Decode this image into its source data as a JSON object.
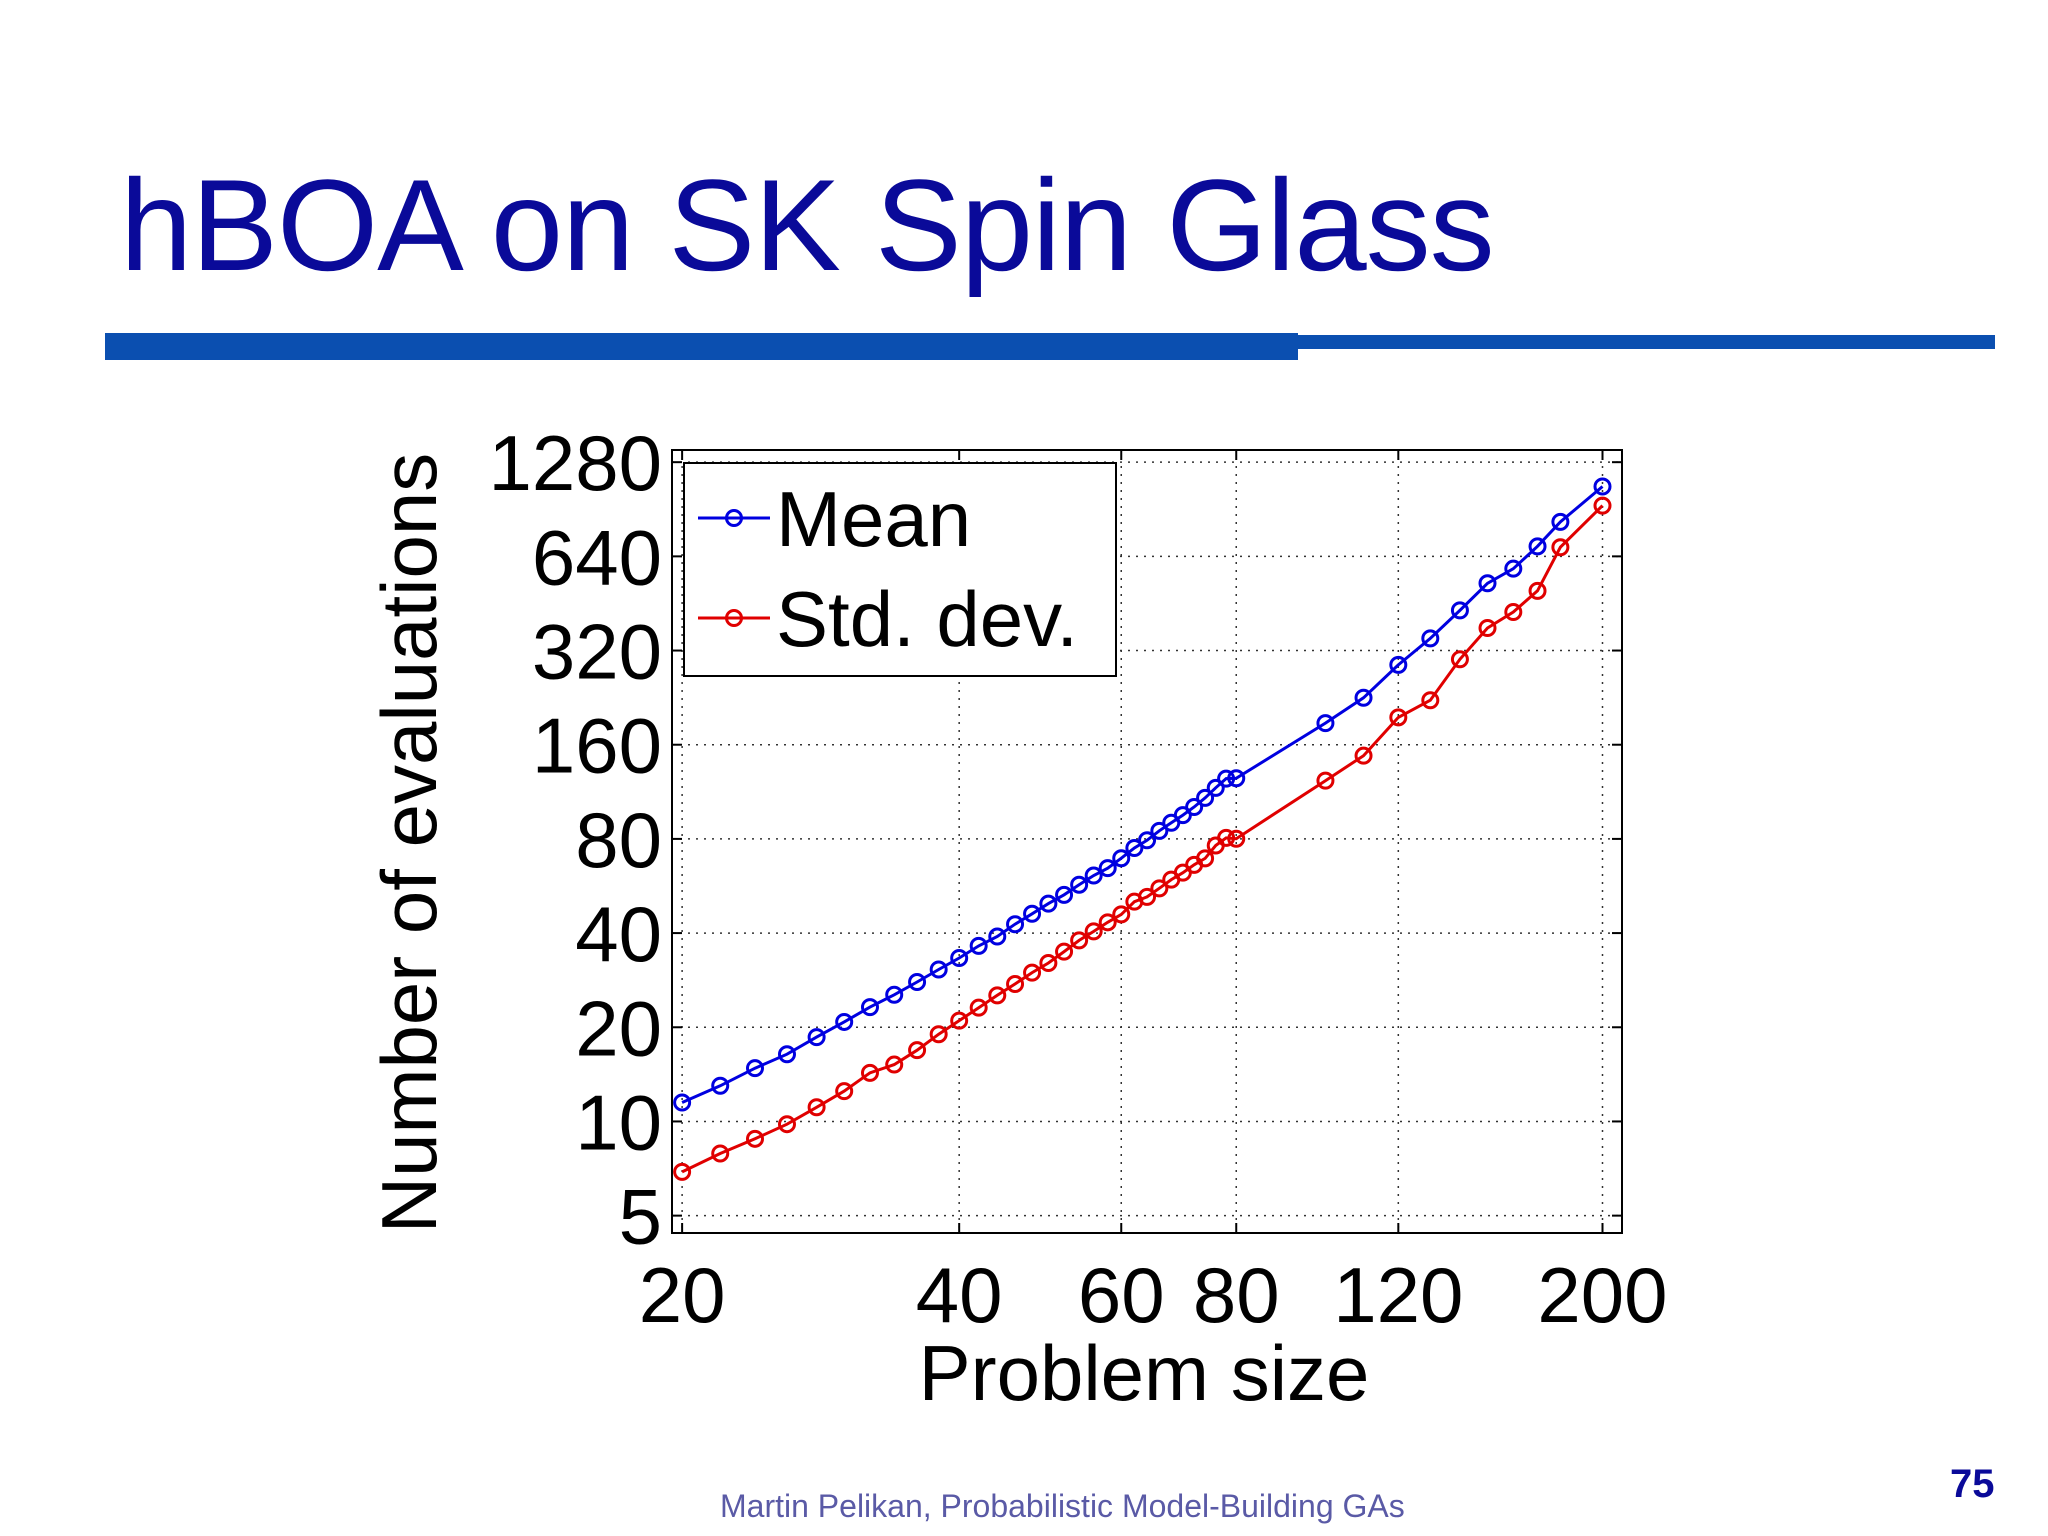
{
  "slide": {
    "title": "hBOA on SK Spin Glass",
    "footer": "Martin Pelikan, Probabilistic Model-Building GAs",
    "page_number": "75"
  },
  "colors": {
    "title": "#0a0a99",
    "rule": "#0b4fb0",
    "mean": "#0000e0",
    "std": "#e00000"
  },
  "chart_data": {
    "type": "line",
    "xscale": "log",
    "yscale": "log",
    "xlabel": "Problem size",
    "ylabel": "Number of evaluations",
    "xlim": [
      19.5,
      210
    ],
    "ylim": [
      4.4,
      1400
    ],
    "xticks": [
      20,
      40,
      60,
      80,
      120,
      200
    ],
    "xtick_labels": [
      "20",
      "40",
      "60",
      "80",
      "120",
      "200"
    ],
    "yticks": [
      5,
      10,
      20,
      40,
      80,
      160,
      320,
      640,
      1280
    ],
    "ytick_labels": [
      "5",
      "10",
      "20",
      "40",
      "80",
      "160",
      "320",
      "640",
      "1280"
    ],
    "grid": true,
    "legend_position": "top-left",
    "series": [
      {
        "name": "Mean",
        "color": "#0000e0",
        "x": [
          20,
          22,
          24,
          26,
          28,
          30,
          32,
          34,
          36,
          38,
          40,
          42,
          44,
          46,
          48,
          50,
          52,
          54,
          56,
          58,
          60,
          62,
          64,
          66,
          68,
          70,
          72,
          74,
          76,
          78,
          80,
          100,
          110,
          120,
          130,
          140,
          150,
          160,
          170,
          180,
          200
        ],
        "y": [
          11.5,
          13.0,
          14.8,
          16.4,
          18.6,
          20.8,
          23.2,
          25.4,
          27.9,
          30.6,
          33.3,
          36.4,
          39.0,
          42.7,
          46.1,
          49.7,
          53.0,
          57.1,
          61.1,
          64.5,
          69.4,
          74.8,
          79.2,
          84.9,
          90.1,
          95.3,
          101.2,
          108.2,
          116.5,
          124.7,
          125.0,
          187.6,
          226.0,
          288.0,
          350.0,
          430.0,
          525.0,
          584.5,
          689.0,
          825.0,
          1070.0
        ]
      },
      {
        "name": "Std. dev.",
        "color": "#e00000",
        "x": [
          20,
          22,
          24,
          26,
          28,
          30,
          32,
          34,
          36,
          38,
          40,
          42,
          44,
          46,
          48,
          50,
          52,
          54,
          56,
          58,
          60,
          62,
          64,
          66,
          68,
          70,
          72,
          74,
          76,
          78,
          80,
          100,
          110,
          120,
          130,
          140,
          150,
          160,
          170,
          180,
          200
        ],
        "y": [
          6.9,
          7.9,
          8.8,
          9.8,
          11.1,
          12.5,
          14.3,
          15.2,
          16.9,
          19.0,
          21.0,
          23.1,
          25.3,
          27.5,
          29.9,
          32.1,
          34.9,
          37.9,
          40.5,
          43.3,
          45.9,
          50.4,
          52.2,
          55.6,
          59.3,
          62.4,
          66.1,
          69.3,
          76.2,
          80.6,
          80.1,
          122.8,
          147.6,
          195.6,
          222.0,
          300.0,
          377.8,
          424.9,
          496.6,
          684.4,
          930.0
        ]
      }
    ]
  }
}
